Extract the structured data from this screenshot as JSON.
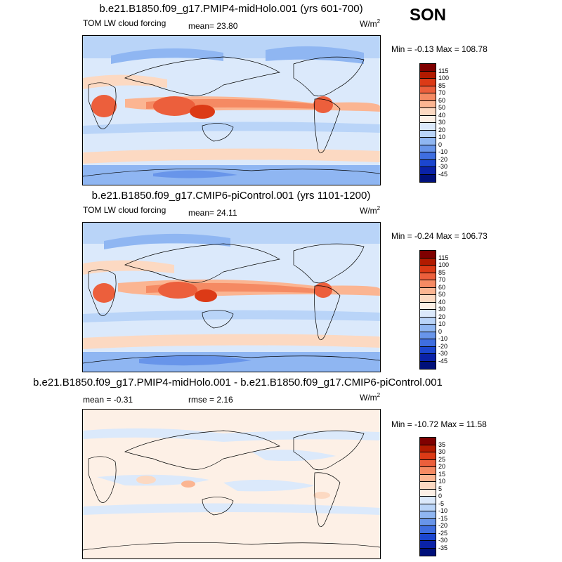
{
  "season": "SON",
  "chart_data": [
    {
      "type": "contour_map",
      "title": "b.e21.B1850.f09_g17.PMIP4-midHolo.001 (yrs 601-700)",
      "left_label": "TOM LW cloud forcing",
      "stat_label": "mean=  23.80",
      "rmse_label": "",
      "units_base": "W/m",
      "units_exp": "2",
      "minmax": "Min =  -0.13 Max = 108.78",
      "levels": [
        "115",
        "100",
        "85",
        "70",
        "60",
        "50",
        "40",
        "30",
        "20",
        "10",
        "0",
        "-10",
        "-20",
        "-30",
        "-45"
      ],
      "colors": [
        "#7f0000",
        "#b21a00",
        "#dc3a16",
        "#ec5f3c",
        "#f58a63",
        "#fbb592",
        "#fcd9c2",
        "#fdf0e6",
        "#dbe9fb",
        "#b9d4f8",
        "#8fb6f2",
        "#6895ea",
        "#3f6ee0",
        "#1b46cf",
        "#0a22a8",
        "#00107a"
      ]
    },
    {
      "type": "contour_map",
      "title": "b.e21.B1850.f09_g17.CMIP6-piControl.001 (yrs 1101-1200)",
      "left_label": "TOM LW cloud forcing",
      "stat_label": "mean=  24.11",
      "rmse_label": "",
      "units_base": "W/m",
      "units_exp": "2",
      "minmax": "Min =  -0.24 Max = 106.73",
      "levels": [
        "115",
        "100",
        "85",
        "70",
        "60",
        "50",
        "40",
        "30",
        "20",
        "10",
        "0",
        "-10",
        "-20",
        "-30",
        "-45"
      ],
      "colors": [
        "#7f0000",
        "#b21a00",
        "#dc3a16",
        "#ec5f3c",
        "#f58a63",
        "#fbb592",
        "#fcd9c2",
        "#fdf0e6",
        "#dbe9fb",
        "#b9d4f8",
        "#8fb6f2",
        "#6895ea",
        "#3f6ee0",
        "#1b46cf",
        "#0a22a8",
        "#00107a"
      ]
    },
    {
      "type": "contour_map",
      "title": "b.e21.B1850.f09_g17.PMIP4-midHolo.001 - b.e21.B1850.f09_g17.CMIP6-piControl.001",
      "left_label": "",
      "stat_label": "mean =  -0.31",
      "rmse_label": "rmse =   2.16",
      "units_base": "W/m",
      "units_exp": "2",
      "minmax": "Min = -10.72 Max =  11.58",
      "levels": [
        "35",
        "30",
        "25",
        "20",
        "15",
        "10",
        "5",
        "0",
        "-5",
        "-10",
        "-15",
        "-20",
        "-25",
        "-30",
        "-35"
      ],
      "colors": [
        "#7f0000",
        "#b21a00",
        "#dc3a16",
        "#ec5f3c",
        "#f58a63",
        "#fbb592",
        "#fcd9c2",
        "#fdf0e6",
        "#dbe9fb",
        "#b9d4f8",
        "#8fb6f2",
        "#6895ea",
        "#3f6ee0",
        "#1b46cf",
        "#0a22a8",
        "#00107a"
      ]
    }
  ]
}
